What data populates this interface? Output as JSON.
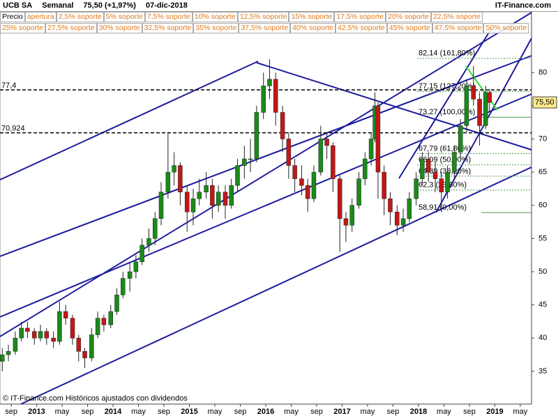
{
  "chart_data": {
    "type": "candlestick",
    "title": "UCB SA",
    "period": "Semanal",
    "change": "75,50 (+1,97%)",
    "date": "07-dic-2018",
    "source": "IT-Finance.com",
    "footer": "© IT-Finance.com Históricos ajustados con dividendos",
    "buttons": [
      [
        "Precio",
        "apertura",
        "2,5% soporte",
        "5% soporte",
        "7,5% soporte",
        "10% soporte",
        "12,5% soporte",
        "15% soporte",
        "17,5% soporte",
        "20% soporte",
        "22,5% soporte"
      ],
      [
        "25% soporte",
        "27,5% soporte",
        "30% soporte",
        "32,5% soporte",
        "35% soporte",
        "37,5% soporte",
        "40% soporte",
        "42,5% soporte",
        "45% soporte",
        "47,5% soporte",
        "50% soporte"
      ]
    ],
    "up_color": "#1a8a1a",
    "down_color": "#c01818",
    "x": [
      2012.55,
      2012.63,
      2012.72,
      2012.8,
      2012.88,
      2012.97,
      2013.05,
      2013.13,
      2013.22,
      2013.3,
      2013.38,
      2013.47,
      2013.55,
      2013.63,
      2013.72,
      2013.8,
      2013.88,
      2013.97,
      2014.05,
      2014.13,
      2014.22,
      2014.3,
      2014.38,
      2014.47,
      2014.55,
      2014.63,
      2014.72,
      2014.8,
      2014.88,
      2014.97,
      2015.05,
      2015.13,
      2015.22,
      2015.3,
      2015.38,
      2015.47,
      2015.55,
      2015.63,
      2015.72,
      2015.8,
      2015.88,
      2015.97,
      2016.05,
      2016.13,
      2016.22,
      2016.3,
      2016.38,
      2016.47,
      2016.55,
      2016.63,
      2016.72,
      2016.8,
      2016.88,
      2016.97,
      2017.05,
      2017.13,
      2017.22,
      2017.3,
      2017.38,
      2017.43,
      2017.47,
      2017.55,
      2017.63,
      2017.72,
      2017.8,
      2017.88,
      2017.97,
      2018.05,
      2018.13,
      2018.22,
      2018.3,
      2018.38,
      2018.47,
      2018.55,
      2018.63,
      2018.72,
      2018.8,
      2018.88,
      2018.93
    ],
    "open": [
      36.5,
      37.5,
      38,
      40,
      41.5,
      41,
      40,
      41,
      40,
      39.5,
      44,
      43,
      40,
      38,
      37,
      40.5,
      43,
      42,
      44,
      46.5,
      49,
      50,
      51.5,
      54,
      55,
      58,
      62,
      65,
      66,
      62,
      59,
      61,
      62,
      63,
      60,
      62,
      60,
      63,
      66,
      67,
      67,
      74,
      78,
      79,
      74,
      70,
      66,
      64,
      63,
      61,
      65,
      70,
      69,
      64,
      58,
      57,
      60,
      64,
      67,
      70,
      75,
      65,
      61,
      59,
      57,
      58,
      61,
      64,
      67,
      65,
      64,
      62,
      65,
      68,
      72,
      78,
      76,
      72,
      77
    ],
    "high": [
      38.5,
      39,
      41,
      42.5,
      42.5,
      41.5,
      42,
      41.5,
      41,
      45.5,
      45,
      43.5,
      40.5,
      38.5,
      41.5,
      44,
      43.5,
      45,
      47.5,
      50,
      51.5,
      52.5,
      55,
      56.5,
      59,
      63.5,
      71,
      68,
      66.5,
      63,
      62.5,
      64,
      65,
      64,
      63,
      63,
      64,
      67,
      69,
      70,
      75,
      80,
      82,
      80,
      75,
      71,
      67,
      66,
      64,
      66,
      72,
      71,
      69.5,
      64.5,
      59,
      61,
      65,
      68,
      71,
      77,
      75.5,
      66,
      62,
      60,
      59.5,
      62,
      65,
      68,
      68,
      66.5,
      65,
      66,
      69,
      73,
      79,
      81,
      77,
      78,
      77.5
    ],
    "low": [
      35,
      36.5,
      37.5,
      39.5,
      40,
      39,
      39.5,
      39,
      38.5,
      39,
      42,
      39,
      36.5,
      35.5,
      36.5,
      40,
      41,
      41.5,
      43.5,
      46,
      47,
      49,
      51,
      53,
      54,
      57,
      61,
      63,
      60,
      56,
      57,
      60,
      61,
      58,
      59,
      58,
      59.5,
      62,
      64,
      65,
      66.5,
      73,
      76,
      72,
      68,
      64,
      62,
      61.5,
      59,
      60.5,
      64.5,
      67,
      62,
      53,
      54.5,
      56,
      59.5,
      63,
      66,
      69.5,
      61,
      58.5,
      57,
      55.5,
      56,
      57.5,
      60,
      63,
      63.5,
      62,
      59,
      61,
      64,
      67,
      71,
      75,
      69,
      71.5,
      74
    ],
    "close": [
      37.5,
      38,
      40,
      41.5,
      41,
      40,
      41,
      40,
      39.5,
      44,
      43,
      40,
      38,
      37,
      40.5,
      43,
      42,
      44,
      46.5,
      49,
      50,
      51.5,
      54,
      55,
      58,
      62,
      65,
      66,
      62,
      59,
      61,
      62,
      63,
      60,
      62,
      60,
      63,
      66,
      67,
      67,
      74,
      78,
      79,
      74,
      70,
      66,
      64,
      63,
      61,
      65,
      70,
      69,
      64,
      58,
      57,
      60,
      64,
      67,
      70,
      75,
      65,
      61,
      59,
      57,
      58,
      61,
      64,
      67,
      65,
      64,
      62,
      65,
      68,
      72,
      78,
      76,
      72,
      77,
      75.5
    ],
    "last_price": {
      "value": 75.5,
      "label": "75,50"
    },
    "xlim": [
      2012.52,
      2019.48
    ],
    "xticks": [
      {
        "value": 2012.667,
        "label": "sep"
      },
      {
        "value": 2013,
        "label": "2013"
      },
      {
        "value": 2013.333,
        "label": "may"
      },
      {
        "value": 2013.667,
        "label": "sep"
      },
      {
        "value": 2014,
        "label": "2014"
      },
      {
        "value": 2014.333,
        "label": "may"
      },
      {
        "value": 2014.667,
        "label": "sep"
      },
      {
        "value": 2015,
        "label": "2015"
      },
      {
        "value": 2015.333,
        "label": "may"
      },
      {
        "value": 2015.667,
        "label": "sep"
      },
      {
        "value": 2016,
        "label": "2016"
      },
      {
        "value": 2016.333,
        "label": "may"
      },
      {
        "value": 2016.667,
        "label": "sep"
      },
      {
        "value": 2017,
        "label": "2017"
      },
      {
        "value": 2017.333,
        "label": "may"
      },
      {
        "value": 2017.667,
        "label": "sep"
      },
      {
        "value": 2018,
        "label": "2018"
      },
      {
        "value": 2018.333,
        "label": "may"
      },
      {
        "value": 2018.667,
        "label": "sep"
      },
      {
        "value": 2019,
        "label": "2019"
      },
      {
        "value": 2019.333,
        "label": "may"
      }
    ],
    "ylim": [
      30.06,
      89.15
    ],
    "yticks": [
      35,
      40,
      45,
      50,
      55,
      60,
      65,
      70,
      75,
      80
    ],
    "levels": [
      {
        "value": 77.4,
        "label": "77,4"
      },
      {
        "value": 70.924,
        "label": "70,924"
      }
    ],
    "fib_levels": [
      {
        "value": 82.14,
        "label": "82,14 (161,80%)"
      },
      {
        "value": 77.15,
        "label": "77,15 (127,20%)"
      },
      {
        "value": 73.27,
        "label": "73,27 (100,00%)"
      },
      {
        "value": 67.79,
        "label": "67,79 (61,80%)"
      },
      {
        "value": 66.09,
        "label": "66,09 (50,00%)"
      },
      {
        "value": 64.39,
        "label": "64,39 (38,20%)"
      },
      {
        "value": 62.3,
        "label": "62,3 (23,60%)"
      },
      {
        "value": 58.91,
        "label": "58,91 (0,00%)"
      }
    ]
  }
}
